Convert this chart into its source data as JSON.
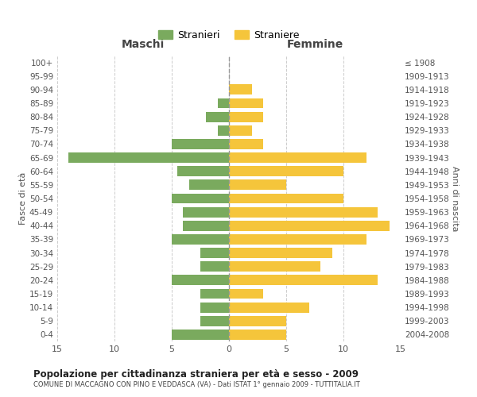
{
  "age_groups": [
    "0-4",
    "5-9",
    "10-14",
    "15-19",
    "20-24",
    "25-29",
    "30-34",
    "35-39",
    "40-44",
    "45-49",
    "50-54",
    "55-59",
    "60-64",
    "65-69",
    "70-74",
    "75-79",
    "80-84",
    "85-89",
    "90-94",
    "95-99",
    "100+"
  ],
  "birth_years": [
    "2004-2008",
    "1999-2003",
    "1994-1998",
    "1989-1993",
    "1984-1988",
    "1979-1983",
    "1974-1978",
    "1969-1973",
    "1964-1968",
    "1959-1963",
    "1954-1958",
    "1949-1953",
    "1944-1948",
    "1939-1943",
    "1934-1938",
    "1929-1933",
    "1924-1928",
    "1919-1923",
    "1914-1918",
    "1909-1913",
    "≤ 1908"
  ],
  "maschi": [
    5,
    2.5,
    2.5,
    2.5,
    5,
    2.5,
    2.5,
    5,
    4,
    4,
    5,
    3.5,
    4.5,
    14,
    5,
    1,
    2,
    1,
    0,
    0,
    0
  ],
  "femmine": [
    5,
    5,
    7,
    3,
    13,
    8,
    9,
    12,
    14,
    13,
    10,
    5,
    10,
    12,
    3,
    2,
    3,
    3,
    2,
    0,
    0
  ],
  "color_maschi": "#7aaa5e",
  "color_femmine": "#f5c53b",
  "title": "Popolazione per cittadinanza straniera per età e sesso - 2009",
  "subtitle": "COMUNE DI MACCAGNO CON PINO E VEDDASCA (VA) - Dati ISTAT 1° gennaio 2009 - TUTTITALIA.IT",
  "ylabel_left": "Fasce di età",
  "ylabel_right": "Anni di nascita",
  "xlabel_left": "Maschi",
  "xlabel_right": "Femmine",
  "legend_maschi": "Stranieri",
  "legend_femmine": "Straniere",
  "xlim": 15,
  "background_color": "#ffffff",
  "grid_color": "#cccccc"
}
